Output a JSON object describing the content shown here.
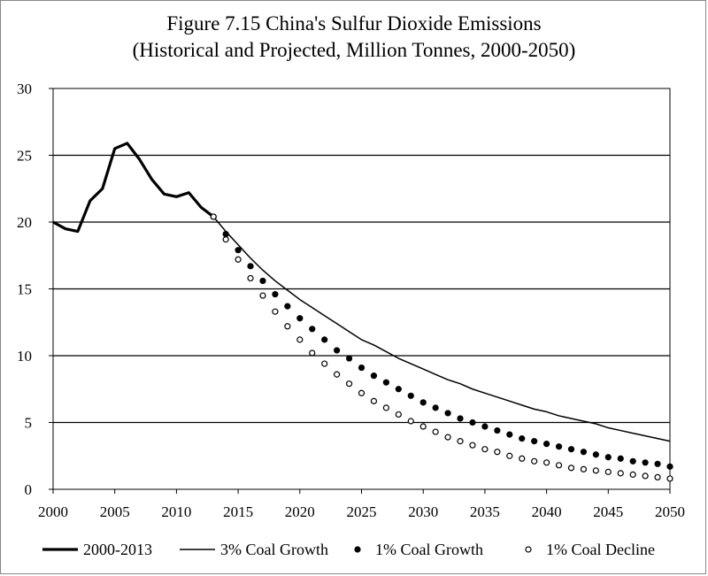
{
  "chart_data": {
    "type": "line",
    "title_line1": "Figure 7.15 China's Sulfur Dioxide Emissions",
    "title_line2": "(Historical and Projected, Million Tonnes, 2000-2050)",
    "xlabel": "",
    "ylabel": "",
    "xlim": [
      2000,
      2050
    ],
    "ylim": [
      0,
      30
    ],
    "x_ticks": [
      2000,
      2005,
      2010,
      2015,
      2020,
      2025,
      2030,
      2035,
      2040,
      2045,
      2050
    ],
    "y_ticks": [
      0,
      5,
      10,
      15,
      20,
      25,
      30
    ],
    "grid": "horizontal",
    "legend_placement": "bottom",
    "series": [
      {
        "name": "2000-2013",
        "style": "thick-line",
        "color": "#000000",
        "x": [
          2000,
          2001,
          2002,
          2003,
          2004,
          2005,
          2006,
          2007,
          2008,
          2009,
          2010,
          2011,
          2012,
          2013
        ],
        "y": [
          20.0,
          19.5,
          19.3,
          21.6,
          22.5,
          25.5,
          25.9,
          24.7,
          23.2,
          22.1,
          21.9,
          22.2,
          21.1,
          20.4
        ]
      },
      {
        "name": "3% Coal Growth",
        "style": "thin-line",
        "color": "#000000",
        "x": [
          2013,
          2014,
          2015,
          2016,
          2017,
          2018,
          2019,
          2020,
          2021,
          2022,
          2023,
          2024,
          2025,
          2026,
          2027,
          2028,
          2029,
          2030,
          2031,
          2032,
          2033,
          2034,
          2035,
          2036,
          2037,
          2038,
          2039,
          2040,
          2041,
          2042,
          2043,
          2044,
          2045,
          2046,
          2047,
          2048,
          2049,
          2050
        ],
        "y": [
          20.4,
          19.3,
          18.3,
          17.3,
          16.4,
          15.6,
          14.9,
          14.2,
          13.6,
          13.0,
          12.4,
          11.8,
          11.2,
          10.8,
          10.3,
          9.8,
          9.4,
          9.0,
          8.6,
          8.2,
          7.9,
          7.5,
          7.2,
          6.9,
          6.6,
          6.3,
          6.0,
          5.8,
          5.5,
          5.3,
          5.1,
          4.9,
          4.6,
          4.4,
          4.2,
          4.0,
          3.8,
          3.6
        ]
      },
      {
        "name": "1% Coal Growth",
        "style": "filled-dots",
        "color": "#000000",
        "x": [
          2013,
          2014,
          2015,
          2016,
          2017,
          2018,
          2019,
          2020,
          2021,
          2022,
          2023,
          2024,
          2025,
          2026,
          2027,
          2028,
          2029,
          2030,
          2031,
          2032,
          2033,
          2034,
          2035,
          2036,
          2037,
          2038,
          2039,
          2040,
          2041,
          2042,
          2043,
          2044,
          2045,
          2046,
          2047,
          2048,
          2049,
          2050
        ],
        "y": [
          20.4,
          19.1,
          17.9,
          16.7,
          15.6,
          14.6,
          13.7,
          12.8,
          12.0,
          11.2,
          10.4,
          9.8,
          9.1,
          8.5,
          8.0,
          7.5,
          7.0,
          6.5,
          6.1,
          5.7,
          5.3,
          5.0,
          4.7,
          4.4,
          4.1,
          3.8,
          3.6,
          3.4,
          3.2,
          3.0,
          2.8,
          2.6,
          2.4,
          2.3,
          2.1,
          2.0,
          1.9,
          1.7
        ]
      },
      {
        "name": "1% Coal Decline",
        "style": "hollow-dots",
        "color": "#000000",
        "x": [
          2013,
          2014,
          2015,
          2016,
          2017,
          2018,
          2019,
          2020,
          2021,
          2022,
          2023,
          2024,
          2025,
          2026,
          2027,
          2028,
          2029,
          2030,
          2031,
          2032,
          2033,
          2034,
          2035,
          2036,
          2037,
          2038,
          2039,
          2040,
          2041,
          2042,
          2043,
          2044,
          2045,
          2046,
          2047,
          2048,
          2049,
          2050
        ],
        "y": [
          20.4,
          18.7,
          17.2,
          15.8,
          14.5,
          13.3,
          12.2,
          11.2,
          10.2,
          9.4,
          8.6,
          7.9,
          7.2,
          6.6,
          6.1,
          5.6,
          5.1,
          4.7,
          4.3,
          3.9,
          3.6,
          3.3,
          3.0,
          2.8,
          2.5,
          2.3,
          2.1,
          2.0,
          1.8,
          1.6,
          1.5,
          1.4,
          1.3,
          1.2,
          1.1,
          1.0,
          0.9,
          0.8
        ]
      }
    ]
  }
}
